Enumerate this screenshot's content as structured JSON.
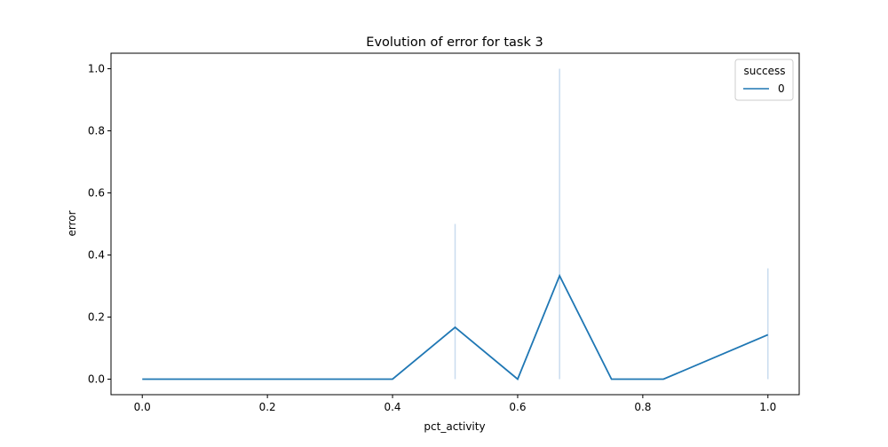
{
  "chart_data": {
    "type": "line",
    "title": "Evolution of error for task 3",
    "xlabel": "pct_activity",
    "ylabel": "error",
    "xlim": [
      -0.05,
      1.05
    ],
    "ylim": [
      -0.05,
      1.05
    ],
    "xticks": [
      {
        "value": 0.0,
        "label": "0.0"
      },
      {
        "value": 0.2,
        "label": "0.2"
      },
      {
        "value": 0.4,
        "label": "0.4"
      },
      {
        "value": 0.6,
        "label": "0.6"
      },
      {
        "value": 0.8,
        "label": "0.8"
      },
      {
        "value": 1.0,
        "label": "1.0"
      }
    ],
    "yticks": [
      {
        "value": 0.0,
        "label": "0.0"
      },
      {
        "value": 0.2,
        "label": "0.2"
      },
      {
        "value": 0.4,
        "label": "0.4"
      },
      {
        "value": 0.6,
        "label": "0.6"
      },
      {
        "value": 0.8,
        "label": "0.8"
      },
      {
        "value": 1.0,
        "label": "1.0"
      }
    ],
    "grid": false,
    "legend": {
      "title": "success",
      "placement": "upper right"
    },
    "series": [
      {
        "name": "0",
        "color": "#1f77b4",
        "x": [
          0.0,
          0.4,
          0.5,
          0.6,
          0.667,
          0.75,
          0.833,
          1.0
        ],
        "y": [
          0.0,
          0.0,
          0.167,
          0.0,
          0.333,
          0.0,
          0.0,
          0.143
        ],
        "error_bars": [
          {
            "x": 0.5,
            "low": 0.0,
            "high": 0.5
          },
          {
            "x": 0.667,
            "low": 0.0,
            "high": 1.0
          },
          {
            "x": 1.0,
            "low": 0.0,
            "high": 0.357
          }
        ],
        "error_color": "#c9dcef"
      }
    ]
  }
}
